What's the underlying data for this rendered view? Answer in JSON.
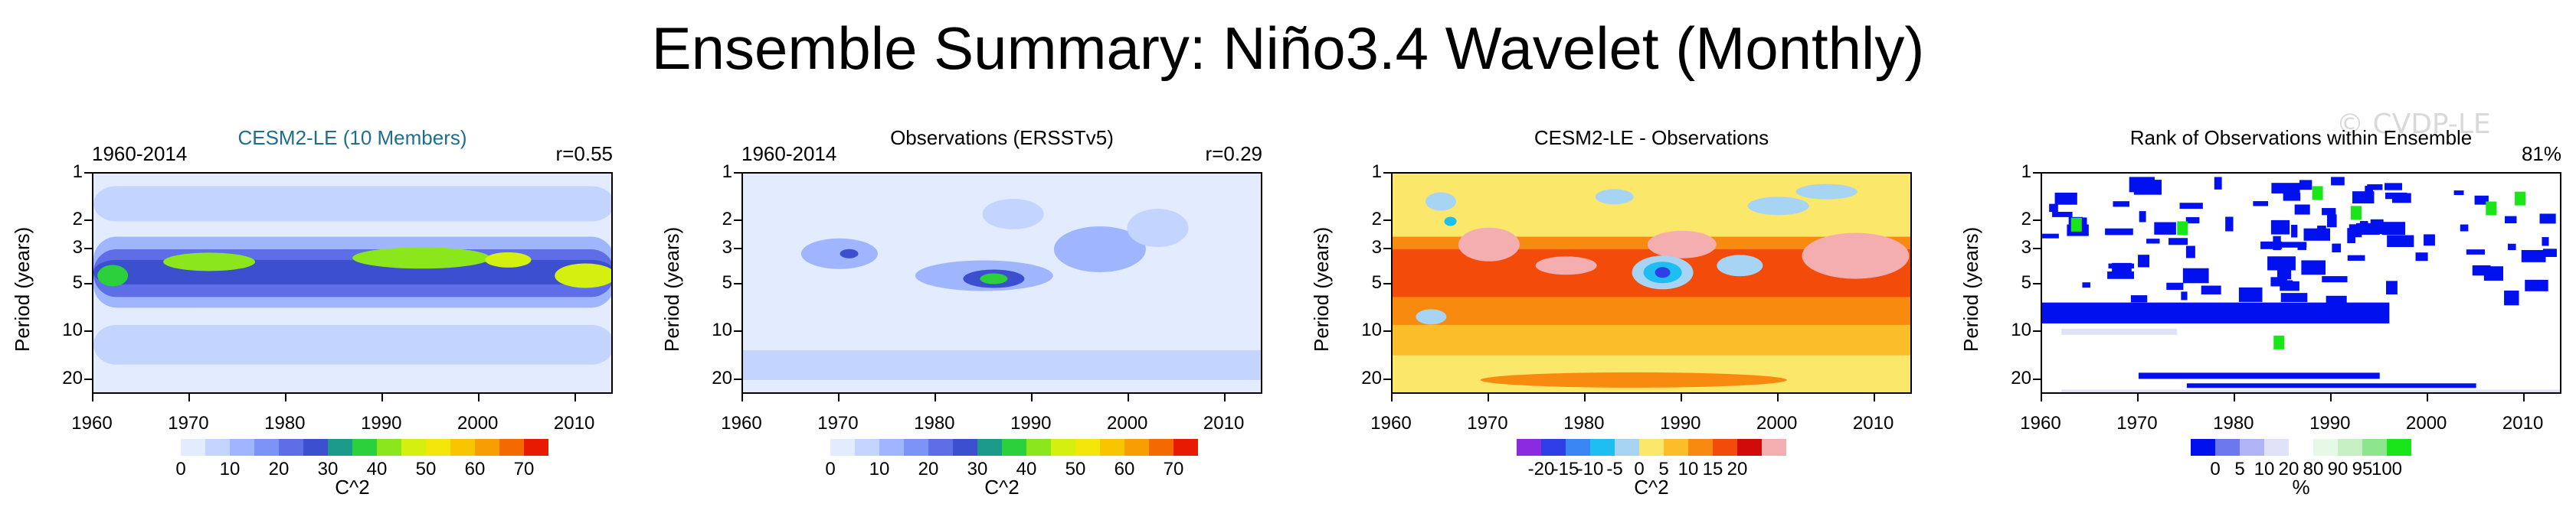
{
  "title": "Ensemble Summary: Niño3.4 Wavelet (Monthly)",
  "watermark": "© CVDP-LE",
  "colors": {
    "ink": "#000000",
    "title_accent": "#1f6f8b"
  },
  "chart_data": [
    {
      "type": "heatmap",
      "title": "CESM2-LE (10 Members)",
      "left_label": "1960-2014",
      "right_label": "r=0.55",
      "xlabel": "",
      "ylabel": "Period (years)",
      "xlim": [
        1960,
        2014
      ],
      "ylim": [
        1,
        25
      ],
      "xticks": [
        "1960",
        "1970",
        "1980",
        "1990",
        "2000",
        "2010"
      ],
      "yticks": [
        "1",
        "2",
        "3",
        "5",
        "10",
        "20"
      ],
      "colorbar_labels": [
        "0",
        "10",
        "20",
        "30",
        "40",
        "50",
        "60",
        "70"
      ],
      "colorbar_unit": "C^2",
      "colorbar_colors": [
        "#ffffff",
        "#e3ebff",
        "#c3d4ff",
        "#9fb6ff",
        "#7d93f5",
        "#5e6ee6",
        "#3b4fcf",
        "#1a9a8a",
        "#2ccf3c",
        "#8be61c",
        "#d3f00f",
        "#f5e60a",
        "#f7c600",
        "#f79e00",
        "#f56a00",
        "#e81b00"
      ],
      "color_values": [
        0,
        5,
        10,
        15,
        20,
        25,
        30,
        35,
        40,
        45,
        50,
        55,
        60,
        65,
        70,
        75
      ],
      "band_peak_period_years": 4,
      "peak_value": 45
    },
    {
      "type": "heatmap",
      "title": "Observations (ERSSTv5)",
      "left_label": "1960-2014",
      "right_label": "r=0.29",
      "xlabel": "",
      "ylabel": "Period (years)",
      "xlim": [
        1960,
        2014
      ],
      "ylim": [
        1,
        25
      ],
      "xticks": [
        "1960",
        "1970",
        "1980",
        "1990",
        "2000",
        "2010"
      ],
      "yticks": [
        "1",
        "2",
        "3",
        "5",
        "10",
        "20"
      ],
      "colorbar_labels": [
        "0",
        "10",
        "20",
        "30",
        "40",
        "50",
        "60",
        "70"
      ],
      "colorbar_unit": "C^2",
      "colorbar_colors": [
        "#ffffff",
        "#e3ebff",
        "#c3d4ff",
        "#9fb6ff",
        "#7d93f5",
        "#5e6ee6",
        "#3b4fcf",
        "#1a9a8a",
        "#2ccf3c",
        "#8be61c",
        "#d3f00f",
        "#f5e60a",
        "#f7c600",
        "#f79e00",
        "#f56a00",
        "#e81b00"
      ],
      "color_values": [
        0,
        5,
        10,
        15,
        20,
        25,
        30,
        35,
        40,
        45,
        50,
        55,
        60,
        65,
        70,
        75
      ],
      "peak_year": 1986,
      "peak_value": 35
    },
    {
      "type": "heatmap",
      "title": "CESM2-LE - Observations",
      "left_label": "",
      "right_label": "",
      "xlabel": "",
      "ylabel": "Period (years)",
      "xlim": [
        1960,
        2014
      ],
      "ylim": [
        1,
        25
      ],
      "xticks": [
        "1960",
        "1970",
        "1980",
        "1990",
        "2000",
        "2010"
      ],
      "yticks": [
        "1",
        "2",
        "3",
        "5",
        "10",
        "20"
      ],
      "colorbar_labels": [
        "-20",
        "-15",
        "-10",
        "-5",
        "0",
        "5",
        "10",
        "15",
        "20"
      ],
      "colorbar_unit": "C^2",
      "colorbar_colors": [
        "#8a2be2",
        "#2e3fe6",
        "#3a86f5",
        "#1fbef0",
        "#a6d4f2",
        "#fbe76a",
        "#fbbe2a",
        "#f88a0f",
        "#f24b0a",
        "#d10a0a",
        "#f4aeb0"
      ],
      "color_values": [
        -25,
        -20,
        -15,
        -10,
        -5,
        0,
        5,
        10,
        15,
        20,
        25
      ]
    },
    {
      "type": "heatmap",
      "title": "Rank of Observations within Ensemble",
      "left_label": "",
      "right_label": "81%",
      "xlabel": "",
      "ylabel": "Period (years)",
      "xlim": [
        1960,
        2014
      ],
      "ylim": [
        1,
        25
      ],
      "xticks": [
        "1960",
        "1970",
        "1980",
        "1990",
        "2000",
        "2010"
      ],
      "yticks": [
        "1",
        "2",
        "3",
        "5",
        "10",
        "20"
      ],
      "colorbar_labels": [
        "0",
        "5",
        "10",
        "20",
        "80",
        "90",
        "95",
        "100"
      ],
      "colorbar_unit": "%",
      "colorbar_colors": [
        "#0010ee",
        "#6e78ee",
        "#b0b4f5",
        "#e0e2fa",
        "#ffffff",
        "#e6f9e6",
        "#c4f0c4",
        "#8de68d",
        "#19e619"
      ],
      "color_values": [
        0,
        5,
        10,
        20,
        50,
        80,
        90,
        95,
        100
      ]
    }
  ]
}
